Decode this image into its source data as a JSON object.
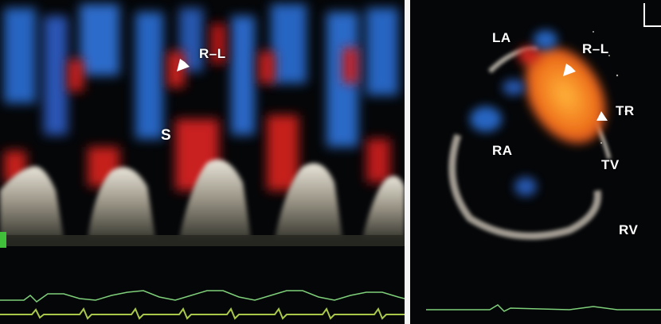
{
  "left_panel": {
    "labels": {
      "rl": "R–L",
      "s": "S"
    }
  },
  "right_panel": {
    "labels": {
      "la": "LA",
      "rl": "R–L",
      "tr": "TR",
      "ra": "RA",
      "tv": "TV",
      "rv": "RV"
    }
  },
  "colors": {
    "background": "#050608",
    "doppler_blue": "#2a6fd6",
    "doppler_red": "#d0201c",
    "doppler_orange": "#f08a1c",
    "ecg_green": "#7fd07a",
    "divider": "#f4f4f4"
  }
}
